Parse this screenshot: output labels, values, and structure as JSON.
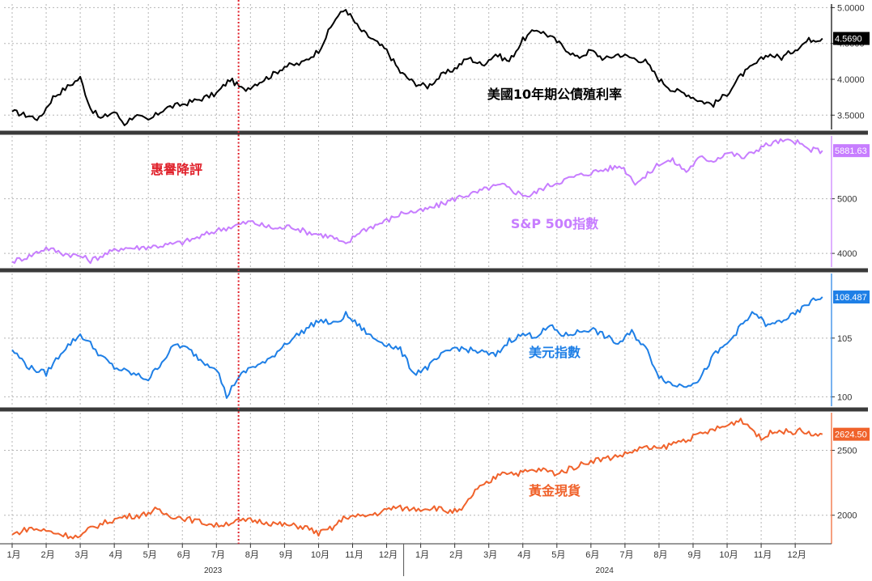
{
  "chart_data": {
    "type": "line",
    "x_ticks": [
      "1月",
      "2月",
      "3月",
      "4月",
      "5月",
      "6月",
      "7月",
      "8月",
      "9月",
      "10月",
      "11月",
      "12月",
      "1月",
      "2月",
      "3月",
      "4月",
      "5月",
      "6月",
      "7月",
      "8月",
      "9月",
      "10月",
      "11月",
      "12月"
    ],
    "years": [
      "2023",
      "2024"
    ],
    "event_marker": {
      "label": "惠譽降評",
      "date": "2023-08-01",
      "color": "#e0202a"
    },
    "grid": true,
    "panels": [
      {
        "label": "美國10年期公債殖利率",
        "color": "#000000",
        "label_color": "#000000",
        "last_value": "4.5690",
        "last_bg": "#000000",
        "ylim": [
          3.3,
          5.05
        ],
        "y_ticks": [
          {
            "value": 3.5,
            "label": "3.5000"
          },
          {
            "value": 4.0,
            "label": "4.0000"
          },
          {
            "value": 4.5,
            "label": "4.5000"
          },
          {
            "value": 5.0,
            "label": "5.0000"
          }
        ],
        "points": [
          [
            0,
            3.55
          ],
          [
            0.4,
            3.5
          ],
          [
            0.8,
            3.45
          ],
          [
            1.2,
            3.75
          ],
          [
            1.7,
            3.92
          ],
          [
            2.0,
            4.02
          ],
          [
            2.3,
            3.6
          ],
          [
            2.6,
            3.45
          ],
          [
            3.0,
            3.55
          ],
          [
            3.3,
            3.38
          ],
          [
            3.6,
            3.5
          ],
          [
            4.0,
            3.42
          ],
          [
            4.5,
            3.6
          ],
          [
            5.0,
            3.65
          ],
          [
            5.5,
            3.72
          ],
          [
            6.0,
            3.8
          ],
          [
            6.4,
            4.0
          ],
          [
            6.8,
            3.85
          ],
          [
            7.2,
            3.95
          ],
          [
            7.6,
            4.05
          ],
          [
            8.0,
            4.18
          ],
          [
            8.5,
            4.22
          ],
          [
            9.0,
            4.4
          ],
          [
            9.5,
            4.85
          ],
          [
            9.8,
            4.98
          ],
          [
            10.2,
            4.7
          ],
          [
            10.6,
            4.55
          ],
          [
            11.0,
            4.4
          ],
          [
            11.4,
            4.1
          ],
          [
            11.8,
            3.95
          ],
          [
            12.2,
            3.9
          ],
          [
            12.6,
            4.05
          ],
          [
            13.0,
            4.15
          ],
          [
            13.4,
            4.3
          ],
          [
            13.8,
            4.2
          ],
          [
            14.2,
            4.35
          ],
          [
            14.6,
            4.25
          ],
          [
            15.0,
            4.55
          ],
          [
            15.4,
            4.7
          ],
          [
            15.8,
            4.6
          ],
          [
            16.2,
            4.45
          ],
          [
            16.6,
            4.3
          ],
          [
            17.0,
            4.4
          ],
          [
            17.4,
            4.28
          ],
          [
            17.8,
            4.35
          ],
          [
            18.2,
            4.3
          ],
          [
            18.6,
            4.25
          ],
          [
            19.0,
            4.0
          ],
          [
            19.4,
            3.85
          ],
          [
            19.8,
            3.8
          ],
          [
            20.2,
            3.7
          ],
          [
            20.6,
            3.65
          ],
          [
            21.0,
            3.8
          ],
          [
            21.4,
            4.05
          ],
          [
            21.8,
            4.2
          ],
          [
            22.2,
            4.35
          ],
          [
            22.6,
            4.3
          ],
          [
            23.0,
            4.42
          ],
          [
            23.4,
            4.55
          ],
          [
            23.8,
            4.57
          ]
        ]
      },
      {
        "label": "S&P 500指數",
        "color": "#c77dff",
        "label_color": "#c77dff",
        "last_value": "5881.63",
        "last_bg": "#c77dff",
        "ylim": [
          3750,
          6150
        ],
        "y_ticks": [
          {
            "value": 4000,
            "label": "4000"
          },
          {
            "value": 5000,
            "label": "5000"
          }
        ],
        "points": [
          [
            0,
            3850
          ],
          [
            0.5,
            3950
          ],
          [
            1.0,
            4100
          ],
          [
            1.5,
            4000
          ],
          [
            2.0,
            3950
          ],
          [
            2.3,
            3870
          ],
          [
            2.8,
            4000
          ],
          [
            3.2,
            4100
          ],
          [
            3.6,
            4100
          ],
          [
            4.0,
            4120
          ],
          [
            4.5,
            4150
          ],
          [
            5.0,
            4200
          ],
          [
            5.5,
            4300
          ],
          [
            6.0,
            4420
          ],
          [
            6.5,
            4500
          ],
          [
            7.0,
            4580
          ],
          [
            7.4,
            4500
          ],
          [
            7.8,
            4450
          ],
          [
            8.2,
            4500
          ],
          [
            8.6,
            4400
          ],
          [
            9.0,
            4350
          ],
          [
            9.4,
            4300
          ],
          [
            9.8,
            4150
          ],
          [
            10.2,
            4400
          ],
          [
            10.6,
            4500
          ],
          [
            11.0,
            4600
          ],
          [
            11.5,
            4750
          ],
          [
            12.0,
            4770
          ],
          [
            12.4,
            4850
          ],
          [
            12.8,
            4950
          ],
          [
            13.2,
            5050
          ],
          [
            13.6,
            5100
          ],
          [
            14.0,
            5200
          ],
          [
            14.4,
            5250
          ],
          [
            14.8,
            5120
          ],
          [
            15.2,
            5050
          ],
          [
            15.6,
            5200
          ],
          [
            16.0,
            5300
          ],
          [
            16.5,
            5400
          ],
          [
            17.0,
            5480
          ],
          [
            17.5,
            5550
          ],
          [
            17.9,
            5600
          ],
          [
            18.3,
            5300
          ],
          [
            18.6,
            5400
          ],
          [
            19.0,
            5650
          ],
          [
            19.4,
            5700
          ],
          [
            19.8,
            5500
          ],
          [
            20.2,
            5750
          ],
          [
            20.6,
            5700
          ],
          [
            21.0,
            5850
          ],
          [
            21.5,
            5750
          ],
          [
            22.0,
            5950
          ],
          [
            22.5,
            6050
          ],
          [
            23.0,
            6050
          ],
          [
            23.4,
            5900
          ],
          [
            23.8,
            5881
          ]
        ]
      },
      {
        "label": "美元指數",
        "color": "#1e7fe6",
        "label_color": "#1e7fe6",
        "last_value": "108.487",
        "last_bg": "#1e7fe6",
        "ylim": [
          99.2,
          110.5
        ],
        "y_ticks": [
          {
            "value": 100,
            "label": "100"
          },
          {
            "value": 105,
            "label": "105"
          }
        ],
        "points": [
          [
            0,
            104
          ],
          [
            0.5,
            102.5
          ],
          [
            1.0,
            102
          ],
          [
            1.5,
            104
          ],
          [
            2.0,
            105.3
          ],
          [
            2.3,
            104.5
          ],
          [
            2.6,
            103.5
          ],
          [
            3.0,
            102.5
          ],
          [
            3.5,
            102
          ],
          [
            4.0,
            101.5
          ],
          [
            4.4,
            103
          ],
          [
            4.8,
            104.5
          ],
          [
            5.2,
            104
          ],
          [
            5.6,
            103
          ],
          [
            6.0,
            102.5
          ],
          [
            6.3,
            100
          ],
          [
            6.6,
            101.5
          ],
          [
            7.0,
            102.5
          ],
          [
            7.5,
            103
          ],
          [
            8.0,
            104.5
          ],
          [
            8.5,
            105.5
          ],
          [
            9.0,
            106.5
          ],
          [
            9.5,
            106.2
          ],
          [
            9.8,
            107
          ],
          [
            10.2,
            106
          ],
          [
            10.6,
            105
          ],
          [
            11.0,
            104.5
          ],
          [
            11.4,
            104
          ],
          [
            11.8,
            102
          ],
          [
            12.2,
            102.5
          ],
          [
            12.6,
            103.5
          ],
          [
            13.0,
            104.2
          ],
          [
            13.4,
            104
          ],
          [
            13.8,
            103.8
          ],
          [
            14.2,
            103.5
          ],
          [
            14.6,
            104.8
          ],
          [
            15.0,
            105.3
          ],
          [
            15.4,
            105.2
          ],
          [
            15.8,
            106
          ],
          [
            16.2,
            105.2
          ],
          [
            16.6,
            105.5
          ],
          [
            17.0,
            105.8
          ],
          [
            17.4,
            105.2
          ],
          [
            17.8,
            104.5
          ],
          [
            18.2,
            105.5
          ],
          [
            18.6,
            104.2
          ],
          [
            19.0,
            101.8
          ],
          [
            19.4,
            101
          ],
          [
            19.8,
            101
          ],
          [
            20.2,
            101.5
          ],
          [
            20.6,
            103.5
          ],
          [
            21.0,
            104.5
          ],
          [
            21.4,
            106
          ],
          [
            21.8,
            107.2
          ],
          [
            22.2,
            106
          ],
          [
            22.6,
            106.5
          ],
          [
            23.0,
            107
          ],
          [
            23.4,
            108
          ],
          [
            23.8,
            108.5
          ]
        ]
      },
      {
        "label": "黃金現貨",
        "color": "#f0622b",
        "label_color": "#f0622b",
        "last_value": "2624.50",
        "last_bg": "#f0622b",
        "ylim": [
          1780,
          2790
        ],
        "y_ticks": [
          {
            "value": 2000,
            "label": "2000"
          },
          {
            "value": 2500,
            "label": "2500"
          }
        ],
        "points": [
          [
            0,
            1850
          ],
          [
            0.5,
            1900
          ],
          [
            1.0,
            1880
          ],
          [
            1.5,
            1850
          ],
          [
            2.0,
            1830
          ],
          [
            2.3,
            1900
          ],
          [
            2.8,
            1950
          ],
          [
            3.3,
            1990
          ],
          [
            3.8,
            2000
          ],
          [
            4.2,
            2040
          ],
          [
            4.6,
            2000
          ],
          [
            5.0,
            1980
          ],
          [
            5.5,
            1950
          ],
          [
            6.0,
            1920
          ],
          [
            6.5,
            1950
          ],
          [
            7.0,
            1960
          ],
          [
            7.4,
            1950
          ],
          [
            7.8,
            1930
          ],
          [
            8.2,
            1920
          ],
          [
            8.6,
            1910
          ],
          [
            9.0,
            1860
          ],
          [
            9.4,
            1900
          ],
          [
            9.8,
            1990
          ],
          [
            10.3,
            1990
          ],
          [
            10.8,
            2020
          ],
          [
            11.2,
            2060
          ],
          [
            11.6,
            2050
          ],
          [
            12.0,
            2050
          ],
          [
            12.4,
            2060
          ],
          [
            12.8,
            2030
          ],
          [
            13.2,
            2030
          ],
          [
            13.6,
            2190
          ],
          [
            14.0,
            2250
          ],
          [
            14.4,
            2340
          ],
          [
            14.8,
            2320
          ],
          [
            15.2,
            2340
          ],
          [
            15.6,
            2350
          ],
          [
            16.0,
            2320
          ],
          [
            16.5,
            2370
          ],
          [
            17.0,
            2420
          ],
          [
            17.5,
            2440
          ],
          [
            18.0,
            2470
          ],
          [
            18.5,
            2520
          ],
          [
            19.0,
            2510
          ],
          [
            19.5,
            2560
          ],
          [
            20.0,
            2600
          ],
          [
            20.5,
            2650
          ],
          [
            21.0,
            2690
          ],
          [
            21.4,
            2740
          ],
          [
            21.8,
            2650
          ],
          [
            22.0,
            2580
          ],
          [
            22.4,
            2660
          ],
          [
            22.8,
            2640
          ],
          [
            23.2,
            2650
          ],
          [
            23.6,
            2610
          ],
          [
            23.8,
            2624
          ]
        ]
      }
    ]
  }
}
